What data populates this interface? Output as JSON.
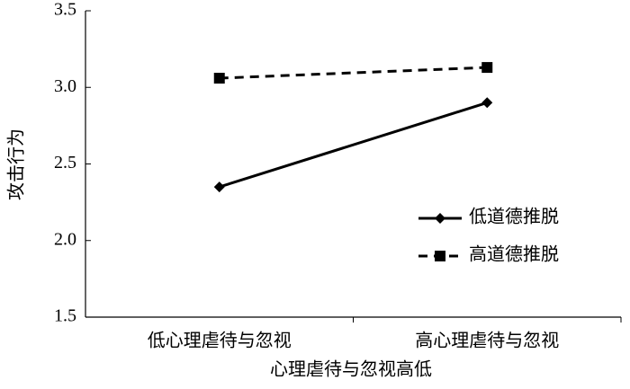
{
  "chart_data": {
    "type": "line",
    "x_label": "心理虐待与忽视高低",
    "y_label": "攻击行为",
    "categories": [
      "低心理虐待与忽视",
      "高心理虐待与忽视"
    ],
    "series": [
      {
        "name": "低道德推脱",
        "color": "#000000",
        "marker": "diamond",
        "dash": false,
        "values": [
          2.35,
          2.9
        ]
      },
      {
        "name": "高道德推脱",
        "color": "#000000",
        "marker": "square",
        "dash": true,
        "values": [
          3.06,
          3.13
        ]
      }
    ],
    "ylim": [
      1.5,
      3.5
    ],
    "yticks": [
      1.5,
      {
        "value": 2,
        "label": "2.0"
      },
      2.5,
      {
        "value": 3,
        "label": "3.0"
      },
      3.5
    ],
    "grid": false,
    "legend": "lower right"
  }
}
